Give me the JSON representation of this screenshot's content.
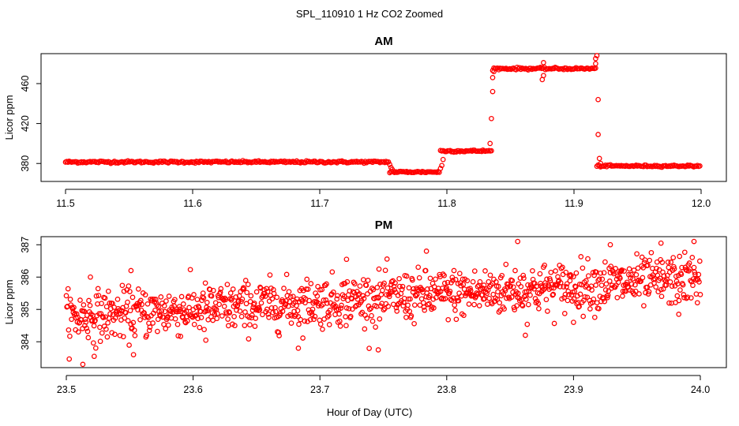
{
  "figure": {
    "title": "SPL_110910  1 Hz CO2 Zoomed",
    "xlabel": "Hour of Day (UTC)"
  },
  "chart_data": [
    {
      "type": "scatter",
      "title": "AM",
      "xlabel": "Hour of Day (UTC)",
      "ylabel": "Licor ppm",
      "xlim": [
        11.5,
        12.0
      ],
      "ylim": [
        362,
        490
      ],
      "xticks": [
        "11.5",
        "11.6",
        "11.7",
        "11.8",
        "11.9",
        "12.0"
      ],
      "yticks": [
        "380",
        "420",
        "460"
      ],
      "ytick_values": [
        380,
        420,
        460
      ],
      "xtick_values": [
        11.5,
        11.6,
        11.7,
        11.8,
        11.9,
        12.0
      ],
      "marker_color": "#ff0000",
      "segments": [
        {
          "x_start": 11.5,
          "x_end": 11.755,
          "y": 381.5,
          "noise": 1.2
        },
        {
          "x_start": 11.755,
          "x_end": 11.795,
          "y": 371.5,
          "noise": 1.0
        },
        {
          "x_start": 11.795,
          "x_end": 11.836,
          "y": 392.5,
          "noise": 1.2
        },
        {
          "x_start": 11.836,
          "x_end": 11.918,
          "y": 475.0,
          "noise": 1.2
        },
        {
          "x_start": 11.918,
          "x_end": 12.0,
          "y": 377.5,
          "noise": 1.0
        }
      ],
      "outliers": [
        {
          "x": 11.755,
          "y": 379
        },
        {
          "x": 11.756,
          "y": 376
        },
        {
          "x": 11.757,
          "y": 374
        },
        {
          "x": 11.797,
          "y": 384
        },
        {
          "x": 11.796,
          "y": 378
        },
        {
          "x": 11.795,
          "y": 375
        },
        {
          "x": 11.834,
          "y": 400
        },
        {
          "x": 11.835,
          "y": 425
        },
        {
          "x": 11.836,
          "y": 452
        },
        {
          "x": 11.836,
          "y": 466
        },
        {
          "x": 11.837,
          "y": 472
        },
        {
          "x": 11.875,
          "y": 464
        },
        {
          "x": 11.876,
          "y": 468
        },
        {
          "x": 11.876,
          "y": 481
        },
        {
          "x": 11.917,
          "y": 480
        },
        {
          "x": 11.917,
          "y": 485
        },
        {
          "x": 11.918,
          "y": 488
        },
        {
          "x": 11.919,
          "y": 444
        },
        {
          "x": 11.919,
          "y": 409
        },
        {
          "x": 11.92,
          "y": 385
        },
        {
          "x": 11.921,
          "y": 380
        }
      ]
    },
    {
      "type": "scatter",
      "title": "PM",
      "xlabel": "Hour of Day (UTC)",
      "ylabel": "Licor ppm",
      "xlim": [
        23.5,
        24.0
      ],
      "ylim": [
        383.2,
        387.25
      ],
      "xticks": [
        "23.5",
        "23.6",
        "23.7",
        "23.8",
        "23.9",
        "24.0"
      ],
      "yticks": [
        "384",
        "385",
        "386",
        "387"
      ],
      "ytick_values": [
        384,
        385,
        386,
        387
      ],
      "xtick_values": [
        23.5,
        23.6,
        23.7,
        23.8,
        23.9,
        24.0
      ],
      "marker_color": "#ff0000",
      "trend": {
        "x_start": 23.5,
        "x_end": 24.0,
        "y_start": 384.75,
        "y_end": 385.95
      },
      "spread": 0.38,
      "n_points": 1100,
      "outliers": [
        {
          "x": 23.513,
          "y": 383.3
        },
        {
          "x": 23.522,
          "y": 383.55
        },
        {
          "x": 23.553,
          "y": 383.6
        },
        {
          "x": 23.519,
          "y": 386.0
        },
        {
          "x": 23.551,
          "y": 386.2
        },
        {
          "x": 23.721,
          "y": 386.55
        },
        {
          "x": 23.746,
          "y": 383.75
        },
        {
          "x": 23.683,
          "y": 383.8
        },
        {
          "x": 23.784,
          "y": 386.8
        },
        {
          "x": 23.856,
          "y": 387.1
        },
        {
          "x": 23.929,
          "y": 387.0
        },
        {
          "x": 23.969,
          "y": 387.05
        },
        {
          "x": 23.995,
          "y": 387.1
        },
        {
          "x": 23.983,
          "y": 384.85
        },
        {
          "x": 23.9,
          "y": 384.6
        },
        {
          "x": 23.61,
          "y": 384.05
        },
        {
          "x": 23.862,
          "y": 384.2
        }
      ]
    }
  ]
}
